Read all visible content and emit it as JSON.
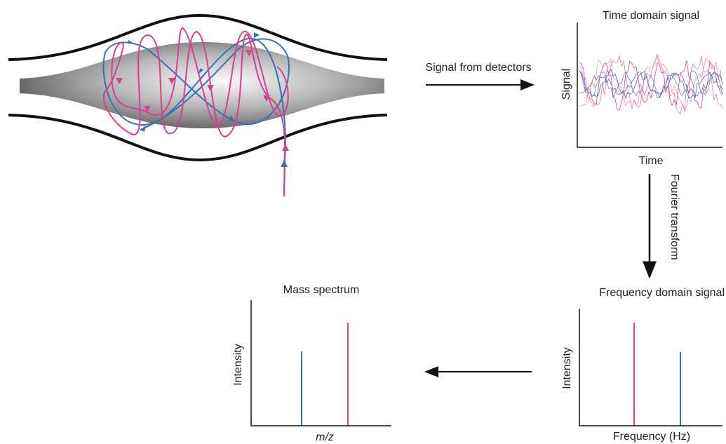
{
  "arrows": {
    "detectors": "Signal from detectors",
    "fourier": "Fourier transform"
  },
  "panels": [
    {
      "title": "Time domain signal",
      "y_label": "Signal",
      "x_label": "Time"
    },
    {
      "title": "Frequency domain signal",
      "y_label": "Intensity",
      "x_label": "Frequency (Hz)"
    },
    {
      "title": "Mass spectrum",
      "y_label": "Intensity",
      "x_label": "m/z"
    }
  ]
}
